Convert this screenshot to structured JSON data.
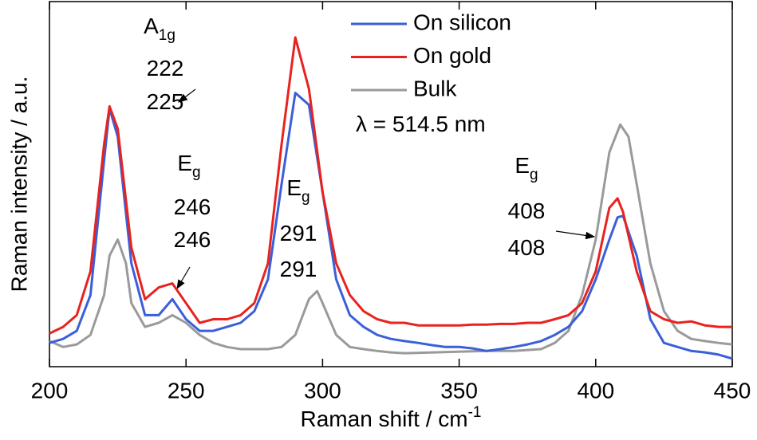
{
  "chart_data": {
    "type": "line",
    "xlabel": "Raman shift / cm",
    "xlabel_sup": "-1",
    "ylabel": "Raman intensity / a.u.",
    "xlim": [
      200,
      450
    ],
    "xticks": [
      200,
      250,
      300,
      350,
      400,
      450
    ],
    "ylim": [
      0,
      100
    ],
    "legend": "top",
    "series": [
      {
        "name": "On silicon",
        "color": "#3a5fd9",
        "x": [
          200,
          205,
          210,
          215,
          220,
          222,
          225,
          230,
          235,
          240,
          245,
          250,
          255,
          260,
          265,
          270,
          275,
          280,
          285,
          290,
          295,
          300,
          305,
          310,
          315,
          320,
          325,
          330,
          335,
          340,
          345,
          350,
          355,
          360,
          365,
          370,
          375,
          380,
          385,
          390,
          395,
          400,
          405,
          408,
          410,
          415,
          420,
          425,
          430,
          435,
          440,
          445,
          450
        ],
        "values": [
          6.5,
          7.6,
          9.8,
          19.6,
          56.5,
          70.7,
          63.0,
          28.3,
          14.1,
          14.1,
          18.5,
          13.0,
          9.8,
          9.8,
          10.9,
          12.0,
          15.2,
          23.9,
          50.0,
          75.0,
          71.7,
          47.8,
          23.9,
          14.1,
          10.9,
          8.7,
          7.6,
          7.0,
          6.5,
          5.9,
          5.4,
          5.4,
          5.0,
          4.3,
          4.8,
          5.4,
          6.1,
          7.0,
          8.7,
          10.9,
          15.2,
          23.9,
          34.8,
          40.9,
          41.3,
          30.4,
          13.0,
          6.5,
          5.4,
          4.3,
          3.9,
          3.3,
          2.2
        ]
      },
      {
        "name": "On gold",
        "color": "#e8231f",
        "x": [
          200,
          205,
          210,
          215,
          220,
          222,
          225,
          230,
          235,
          240,
          245,
          250,
          255,
          260,
          265,
          270,
          275,
          280,
          285,
          290,
          295,
          300,
          305,
          310,
          315,
          320,
          325,
          330,
          335,
          340,
          345,
          350,
          355,
          360,
          365,
          370,
          375,
          380,
          385,
          390,
          395,
          400,
          405,
          408,
          410,
          415,
          420,
          425,
          430,
          435,
          440,
          445,
          450
        ],
        "values": [
          9.1,
          10.9,
          14.1,
          26.1,
          60.9,
          71.3,
          65.2,
          32.6,
          18.5,
          21.7,
          22.8,
          17.4,
          12.0,
          13.0,
          13.0,
          14.1,
          17.4,
          28.3,
          60.9,
          90.2,
          76.1,
          47.8,
          28.3,
          19.6,
          15.2,
          13.0,
          12.0,
          12.0,
          11.3,
          11.3,
          11.3,
          11.3,
          11.5,
          11.5,
          11.7,
          11.7,
          12.0,
          12.0,
          13.0,
          14.1,
          17.4,
          26.1,
          43.5,
          46.1,
          42.4,
          26.1,
          15.2,
          13.0,
          12.0,
          12.4,
          11.3,
          10.9,
          10.9
        ]
      },
      {
        "name": "Bulk",
        "color": "#9a9a9a",
        "x": [
          200,
          205,
          210,
          215,
          220,
          222,
          225,
          228,
          230,
          235,
          240,
          245,
          250,
          255,
          260,
          265,
          270,
          275,
          280,
          285,
          290,
          295,
          298,
          300,
          305,
          310,
          315,
          320,
          325,
          330,
          360,
          370,
          380,
          385,
          390,
          395,
          400,
          405,
          409,
          412,
          415,
          420,
          425,
          430,
          435,
          440,
          445,
          450
        ],
        "values": [
          7.0,
          5.4,
          6.1,
          8.7,
          19.6,
          30.4,
          34.8,
          28.3,
          17.4,
          10.9,
          12.0,
          14.1,
          12.0,
          8.7,
          6.5,
          5.4,
          4.8,
          4.8,
          4.8,
          5.4,
          8.7,
          18.5,
          20.7,
          17.4,
          8.7,
          5.4,
          4.8,
          4.3,
          3.9,
          3.7,
          4.3,
          4.3,
          4.8,
          6.5,
          9.8,
          19.6,
          34.8,
          58.7,
          66.3,
          63.0,
          50.0,
          28.3,
          15.2,
          9.8,
          7.6,
          7.0,
          6.5,
          6.1
        ]
      }
    ],
    "annotations": [
      {
        "text": "A",
        "sub": "1g",
        "color": "#000000"
      },
      {
        "text": "222",
        "color": "#e8231f"
      },
      {
        "text": "225",
        "color": "#3a5fd9"
      },
      {
        "text": "E",
        "sub": "g",
        "color": "#000000"
      },
      {
        "text": "246",
        "color": "#3a5fd9"
      },
      {
        "text": "246",
        "color": "#e8231f"
      },
      {
        "text": "E",
        "sub": "g",
        "color": "#000000"
      },
      {
        "text": "291",
        "color": "#e8231f"
      },
      {
        "text": "291",
        "color": "#3a5fd9"
      },
      {
        "text": "E",
        "sub": "g",
        "color": "#000000"
      },
      {
        "text": "408",
        "color": "#3a5fd9"
      },
      {
        "text": "408",
        "color": "#e8231f"
      },
      {
        "text": "λ = 514.5 nm",
        "color": "#000000"
      }
    ]
  }
}
